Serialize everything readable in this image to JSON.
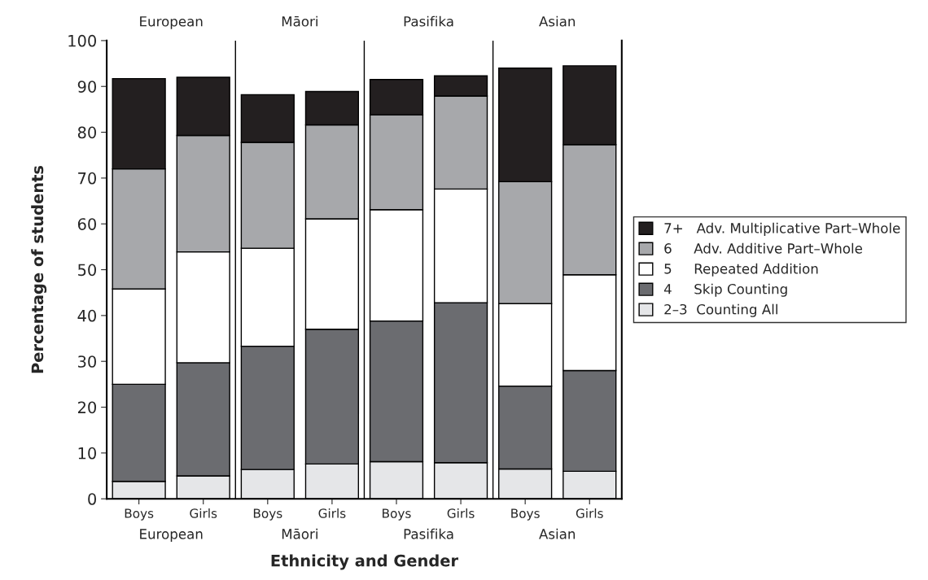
{
  "chart_data": {
    "type": "bar",
    "stacked": true,
    "xlabel": "Ethnicity and Gender",
    "ylabel": "Percentage of students",
    "categories": [
      "Boys",
      "Girls",
      "Boys",
      "Girls",
      "Boys",
      "Girls",
      "Boys",
      "Girls"
    ],
    "series": [
      {
        "name": "2–3  Counting All",
        "color": "#e5e6e8",
        "values": [
          3.8,
          5,
          6.4,
          7.6,
          8.1,
          7.9,
          6.5,
          6
        ]
      },
      {
        "name": "4     Skip Counting",
        "color": "#6b6c70",
        "values": [
          21.2,
          24.7,
          26.9,
          29.4,
          30.7,
          34.9,
          18.1,
          22
        ]
      },
      {
        "name": "5     Repeated Addition",
        "color": "#ffffff",
        "values": [
          20.8,
          24.2,
          21.4,
          24.1,
          24.3,
          24.8,
          18,
          20.9
        ]
      },
      {
        "name": "6     Adv. Additive Part–Whole",
        "color": "#a7a8ab",
        "values": [
          26.2,
          25.4,
          23.1,
          20.5,
          20.7,
          20.3,
          26.6,
          28.4
        ]
      },
      {
        "name": "7+   Adv. Multiplicative Part–Whole",
        "color": "#231f20",
        "values": [
          19.7,
          12.7,
          10.4,
          7.3,
          7.7,
          4.4,
          24.8,
          17.2
        ]
      }
    ],
    "ylim": [
      0,
      100
    ],
    "yticks": [
      0,
      10,
      20,
      30,
      40,
      50,
      60,
      70,
      80,
      90,
      100
    ],
    "annotations": [
      "European",
      "Māori",
      "Pasifika",
      "Asian",
      "European",
      "Māori",
      "Pasifika",
      "Asian"
    ],
    "grid": false,
    "legend": "right"
  }
}
